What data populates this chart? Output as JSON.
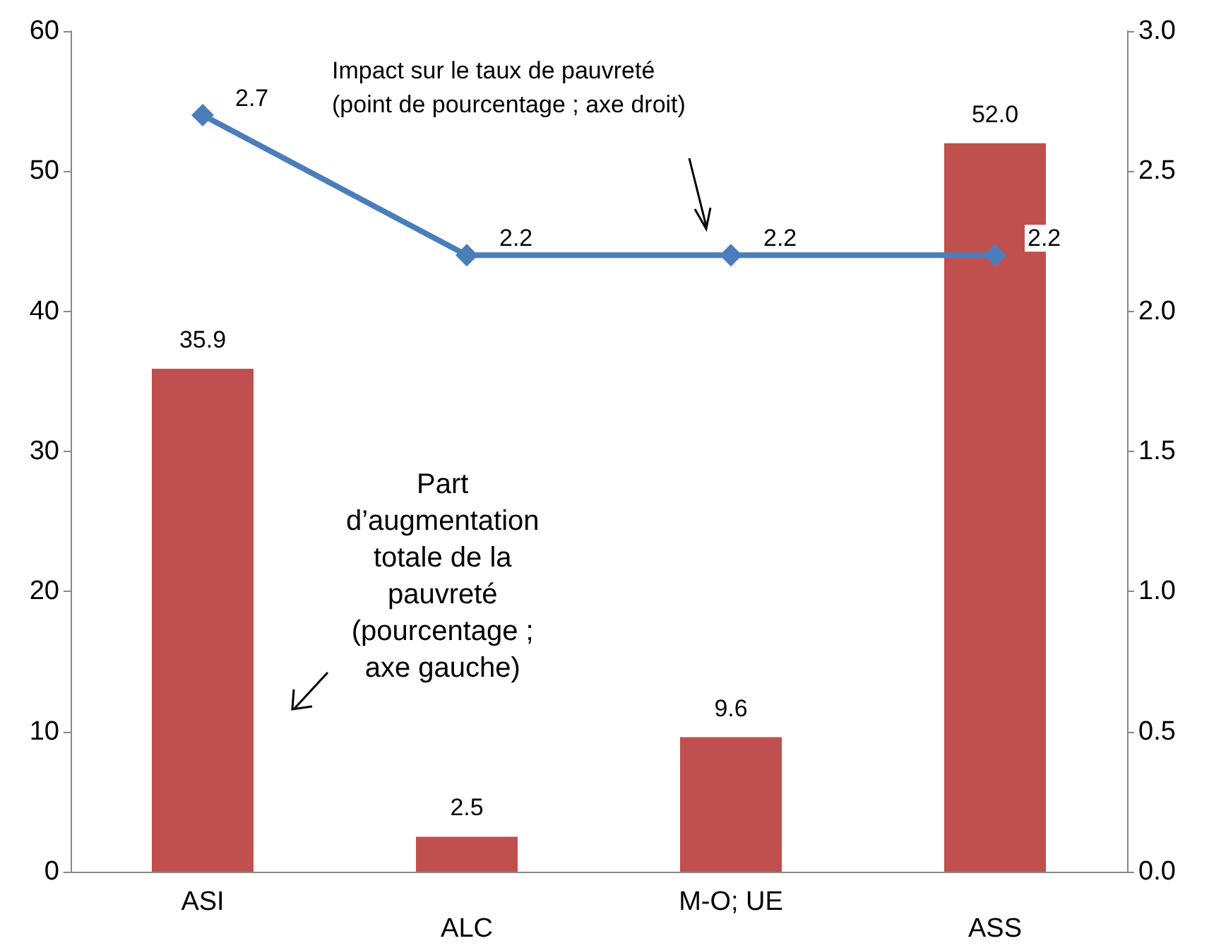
{
  "chart_data": {
    "type": "bar",
    "categories": [
      "ASI",
      "ALC",
      "M-O; UE",
      "ASS"
    ],
    "series": [
      {
        "color": "#c0504d",
        "values": [
          35.9,
          2.5,
          9.6,
          52.0
        ],
        "value_labels": [
          "35.9",
          "2.5",
          "9.6",
          "52.0"
        ]
      },
      {
        "type": "line",
        "axis": "y2",
        "color": "#4a7ebb",
        "marker": "diamond",
        "values": [
          2.7,
          2.2,
          2.2,
          2.2
        ],
        "value_labels": [
          "2.7",
          "2.2",
          "2.2",
          "2.2"
        ]
      }
    ],
    "ylim": [
      0,
      60
    ],
    "yticks": [
      0,
      10,
      20,
      30,
      40,
      50,
      60
    ],
    "y2lim": [
      0,
      3
    ],
    "y2ticks": [
      {
        "value": 0,
        "label": "0.0"
      },
      {
        "value": 0.5,
        "label": "0.5"
      },
      {
        "value": 1,
        "label": "1.0"
      },
      {
        "value": 1.5,
        "label": "1.5"
      },
      {
        "value": 2,
        "label": "2.0"
      },
      {
        "value": 2.5,
        "label": "2.5"
      },
      {
        "value": 3,
        "label": "3.0"
      }
    ],
    "grid": false,
    "annotations": [
      "Impact sur le taux de pauvreté\n(point de pourcentage ; axe droit)",
      "Part\nd’augmentation\ntotale de la\npauvreté\n(pourcentage ;\naxe gauche)"
    ]
  }
}
